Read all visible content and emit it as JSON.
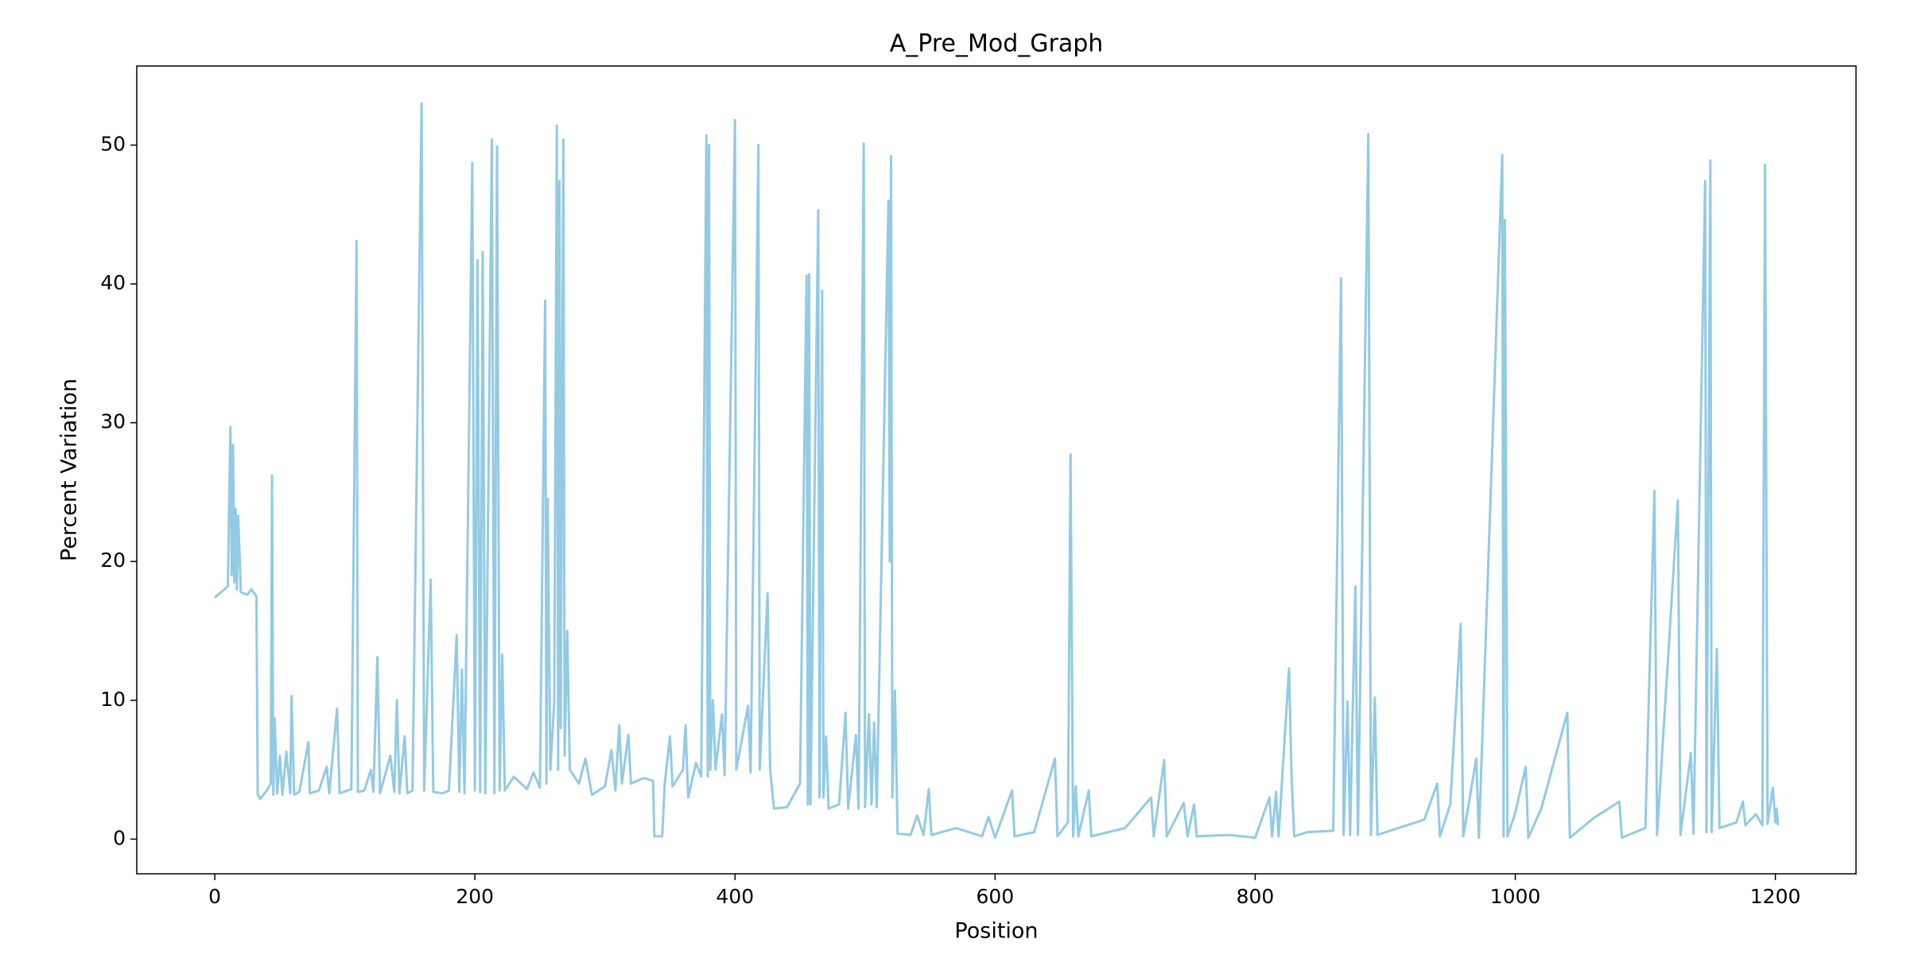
{
  "chart_data": {
    "type": "line",
    "title": "A_Pre_Mod_Graph",
    "x_label": "Position",
    "y_label": "Percent Variation",
    "color": "#93cae4",
    "x": [
      0,
      5,
      10,
      12,
      13,
      14,
      15,
      16,
      17,
      18,
      20,
      25,
      28,
      32,
      33,
      35,
      40,
      43,
      44,
      45,
      46,
      48,
      50,
      52,
      55,
      58,
      59,
      61,
      65,
      72,
      73,
      80,
      86,
      88,
      94,
      96,
      105,
      109,
      110,
      115,
      120,
      122,
      125,
      127,
      135,
      138,
      140,
      142,
      146,
      148,
      152,
      159,
      161,
      166,
      168,
      175,
      180,
      186,
      188,
      190,
      192,
      198,
      200,
      202,
      204,
      206,
      208,
      213,
      215,
      217,
      219,
      221,
      223,
      230,
      240,
      245,
      250,
      254,
      255,
      256,
      258,
      261,
      263,
      264,
      265,
      266,
      268,
      269,
      271,
      273,
      280,
      285,
      290,
      300,
      305,
      308,
      311,
      313,
      318,
      320,
      330,
      337,
      338,
      340,
      344,
      346,
      350,
      352,
      360,
      362,
      364,
      370,
      374,
      378,
      379,
      380,
      381,
      383,
      385,
      390,
      392,
      400,
      401,
      410,
      412,
      418,
      419,
      425,
      427,
      430,
      440,
      450,
      455,
      456,
      457,
      458,
      464,
      465,
      467,
      468,
      470,
      472,
      480,
      485,
      487,
      493,
      495,
      499,
      500,
      503,
      505,
      507,
      509,
      518,
      519,
      520,
      521,
      523,
      525,
      535,
      540,
      545,
      549,
      551,
      570,
      590,
      595,
      600,
      613,
      615,
      630,
      646,
      648,
      656,
      658,
      660,
      662,
      664,
      672,
      674,
      700,
      720,
      722,
      730,
      732,
      745,
      748,
      753,
      755,
      780,
      800,
      811,
      813,
      816,
      818,
      826,
      828,
      830,
      840,
      860,
      866,
      868,
      871,
      873,
      877,
      879,
      887,
      889,
      892,
      894,
      910,
      930,
      940,
      942,
      950,
      958,
      960,
      970,
      972,
      990,
      991,
      992,
      994,
      1000,
      1008,
      1010,
      1020,
      1040,
      1042,
      1060,
      1080,
      1082,
      1100,
      1107,
      1109,
      1125,
      1127,
      1135,
      1137,
      1146,
      1147,
      1150,
      1151,
      1155,
      1157,
      1170,
      1175,
      1177,
      1185,
      1190,
      1192,
      1194,
      1198,
      1200,
      1201,
      1202
    ],
    "values": [
      17.4,
      17.8,
      18.2,
      29.7,
      19,
      28.4,
      18.5,
      23.8,
      18,
      23.3,
      17.8,
      17.6,
      18,
      17.5,
      3.2,
      2.9,
      3.5,
      4,
      26.2,
      3.2,
      8.7,
      3.3,
      6,
      3.2,
      6.3,
      3.3,
      10.3,
      3.2,
      3.4,
      7,
      3.3,
      3.5,
      5.2,
      3.3,
      9.4,
      3.3,
      3.6,
      43.1,
      3.4,
      3.5,
      5,
      3.4,
      13.1,
      3.3,
      6,
      3.4,
      10,
      3.3,
      7.4,
      3.3,
      3.5,
      53,
      3.5,
      18.7,
      3.4,
      3.3,
      3.5,
      14.7,
      3.4,
      12.2,
      3.3,
      48.7,
      3.5,
      41.7,
      3.4,
      42.3,
      3.3,
      50.4,
      3.3,
      49.9,
      3.5,
      13.3,
      3.5,
      4.5,
      3.6,
      4.8,
      3.7,
      38.8,
      4,
      24.5,
      5,
      9.8,
      51.4,
      5,
      47.4,
      8,
      50.4,
      6,
      15,
      5,
      4,
      5.8,
      3.2,
      3.8,
      6.4,
      3.5,
      8.2,
      4,
      7.5,
      4,
      4.4,
      4.2,
      0.2,
      0.2,
      0.2,
      4,
      7.4,
      3.8,
      5,
      8.2,
      3,
      5.5,
      4.5,
      50.7,
      4.5,
      50,
      5,
      10,
      5,
      9,
      4.6,
      51.8,
      5,
      9.6,
      4.8,
      50,
      5,
      17.7,
      5,
      2.2,
      2.3,
      4,
      40.6,
      2.5,
      40.7,
      2.5,
      45.3,
      3,
      39.5,
      3,
      7.4,
      2.2,
      2.5,
      9.1,
      2.2,
      7.5,
      2.2,
      50.1,
      2.3,
      9,
      2.5,
      8.4,
      2.3,
      46,
      20,
      49.2,
      3,
      10.7,
      0.4,
      0.3,
      1.7,
      0.3,
      3.6,
      0.3,
      0.8,
      0.2,
      1.6,
      0.1,
      3.5,
      0.2,
      0.5,
      5.8,
      0.2,
      1.2,
      27.7,
      0.2,
      3.8,
      0.2,
      3.5,
      0.2,
      0.8,
      3,
      0.2,
      5.7,
      0.2,
      2.6,
      0.2,
      2.5,
      0.2,
      0.3,
      0.1,
      3,
      0.2,
      3.4,
      0.2,
      12.3,
      4.4,
      0.2,
      0.5,
      0.6,
      40.4,
      0.3,
      9.9,
      0.3,
      18.2,
      0.3,
      50.8,
      0.3,
      10.2,
      0.3,
      0.8,
      1.4,
      4,
      0.2,
      2.5,
      15.5,
      0.2,
      5.8,
      0.1,
      49.3,
      0.2,
      44.6,
      0.2,
      1.9,
      5.2,
      0.1,
      2.2,
      9.1,
      0.1,
      1.5,
      2.7,
      0.1,
      0.8,
      25.1,
      0.3,
      24.4,
      0.3,
      6.2,
      0.4,
      47.4,
      0.5,
      48.9,
      0.5,
      13.7,
      0.8,
      1.2,
      2.7,
      1,
      1.8,
      1,
      48.6,
      1.1,
      3.7,
      1.2,
      2.2,
      1
    ],
    "xlim": [
      -60,
      1262
    ],
    "ylim": [
      -2.5,
      55.7
    ],
    "xticks": [
      0,
      200,
      400,
      600,
      800,
      1000,
      1200
    ],
    "yticks": [
      0,
      10,
      20,
      30,
      40,
      50
    ]
  }
}
